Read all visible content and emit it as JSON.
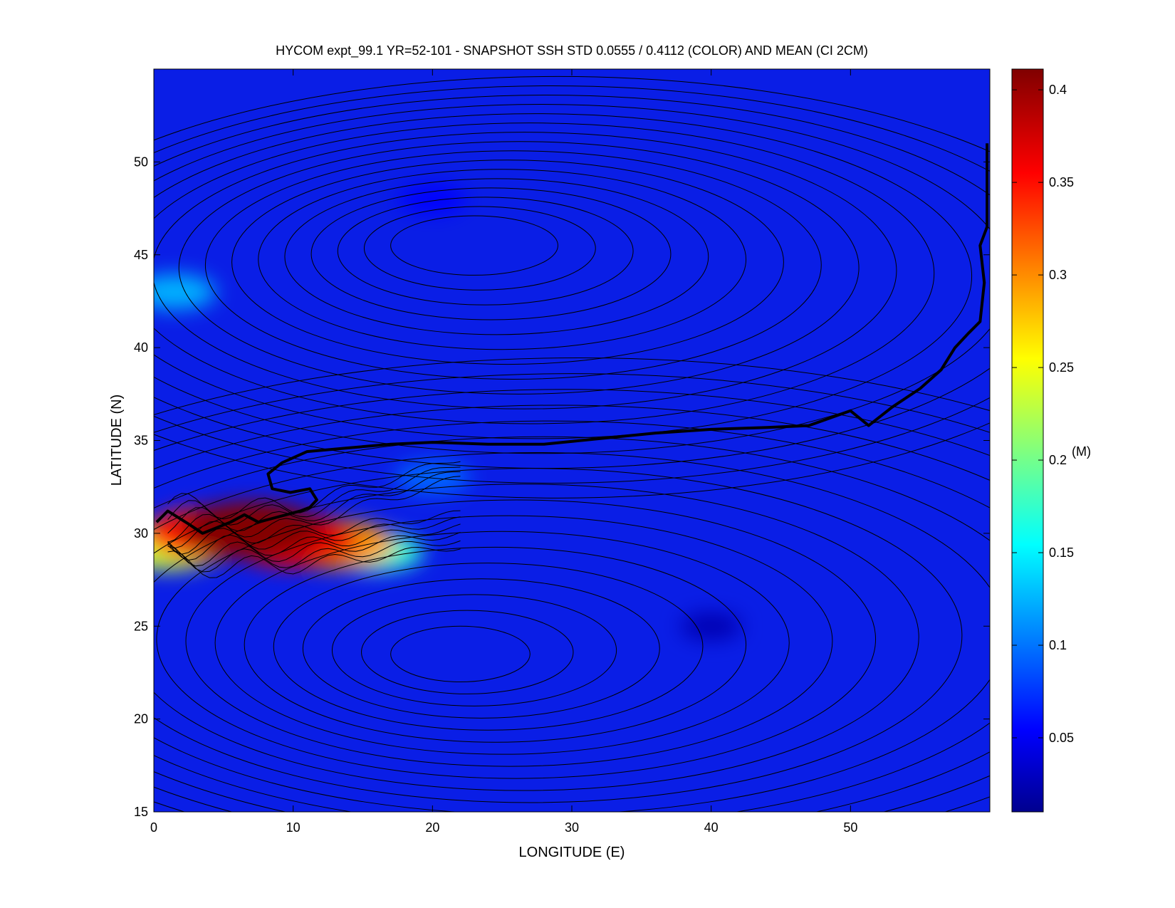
{
  "chart_data": {
    "type": "heatmap",
    "title": "HYCOM expt_99.1 YR=52-101 - SNAPSHOT SSH STD 0.0555 / 0.4112 (COLOR) AND MEAN (CI 2CM)",
    "xlabel": "LONGITUDE (E)",
    "ylabel": "LATITUDE (N)",
    "xlim": [
      0,
      60
    ],
    "ylim": [
      15,
      55
    ],
    "xticks": [
      "0",
      "10",
      "20",
      "30",
      "40",
      "50"
    ],
    "xtick_values": [
      0,
      10,
      20,
      30,
      40,
      50
    ],
    "yticks": [
      "15",
      "20",
      "25",
      "30",
      "35",
      "40",
      "45",
      "50"
    ],
    "ytick_values": [
      15,
      20,
      25,
      30,
      35,
      40,
      45,
      50
    ],
    "colorbar": {
      "label": "(M)",
      "range": [
        0.01,
        0.4112
      ],
      "ticks": [
        "0.05",
        "0.1",
        "0.15",
        "0.2",
        "0.25",
        "0.3",
        "0.35",
        "0.4"
      ],
      "tick_values": [
        0.05,
        0.1,
        0.15,
        0.2,
        0.25,
        0.3,
        0.35,
        0.4
      ],
      "colormap": "jet",
      "mean": 0.0555,
      "max": 0.4112
    },
    "contour_interval_cm": 2,
    "std_field_features": [
      {
        "lon": 4,
        "lat": 30.0,
        "std": 0.35
      },
      {
        "lon": 7,
        "lat": 30.2,
        "std": 0.41
      },
      {
        "lon": 10,
        "lat": 29.6,
        "std": 0.37
      },
      {
        "lon": 13,
        "lat": 29.4,
        "std": 0.3
      },
      {
        "lon": 16,
        "lat": 29.0,
        "std": 0.18
      },
      {
        "lon": 1,
        "lat": 29.2,
        "std": 0.24
      },
      {
        "lon": 1.5,
        "lat": 43,
        "std": 0.13
      },
      {
        "lon": 20,
        "lat": 33,
        "std": 0.1
      },
      {
        "lon": 20,
        "lat": 48,
        "std": 0.06
      },
      {
        "lon": 40,
        "lat": 25,
        "std": 0.03
      }
    ],
    "zero_contour_path": [
      [
        0.2,
        30.6
      ],
      [
        1,
        31.2
      ],
      [
        2.5,
        30.5
      ],
      [
        3.5,
        30.0
      ],
      [
        4.5,
        30.3
      ],
      [
        5.5,
        30.6
      ],
      [
        6.5,
        31.0
      ],
      [
        7.5,
        30.6
      ],
      [
        8.5,
        30.8
      ],
      [
        9.5,
        31.0
      ],
      [
        10.5,
        31.2
      ],
      [
        11.2,
        31.4
      ],
      [
        11.7,
        31.8
      ],
      [
        11.2,
        32.4
      ],
      [
        9.8,
        32.2
      ],
      [
        8.5,
        32.4
      ],
      [
        8.2,
        33.2
      ],
      [
        9.2,
        33.8
      ],
      [
        11,
        34.4
      ],
      [
        14,
        34.6
      ],
      [
        17,
        34.8
      ],
      [
        20,
        34.9
      ],
      [
        24,
        34.8
      ],
      [
        28,
        34.8
      ],
      [
        32,
        35.1
      ],
      [
        36,
        35.4
      ],
      [
        40,
        35.6
      ],
      [
        44,
        35.7
      ],
      [
        47,
        35.8
      ],
      [
        50,
        36.6
      ],
      [
        51.3,
        35.8
      ],
      [
        53,
        36.8
      ],
      [
        55,
        37.8
      ],
      [
        56.5,
        38.8
      ],
      [
        57.5,
        40.0
      ],
      [
        58.5,
        40.8
      ],
      [
        59.3,
        41.4
      ],
      [
        59.6,
        43.5
      ],
      [
        59.3,
        45.5
      ],
      [
        59.8,
        46.5
      ],
      [
        59.8,
        51
      ]
    ]
  }
}
